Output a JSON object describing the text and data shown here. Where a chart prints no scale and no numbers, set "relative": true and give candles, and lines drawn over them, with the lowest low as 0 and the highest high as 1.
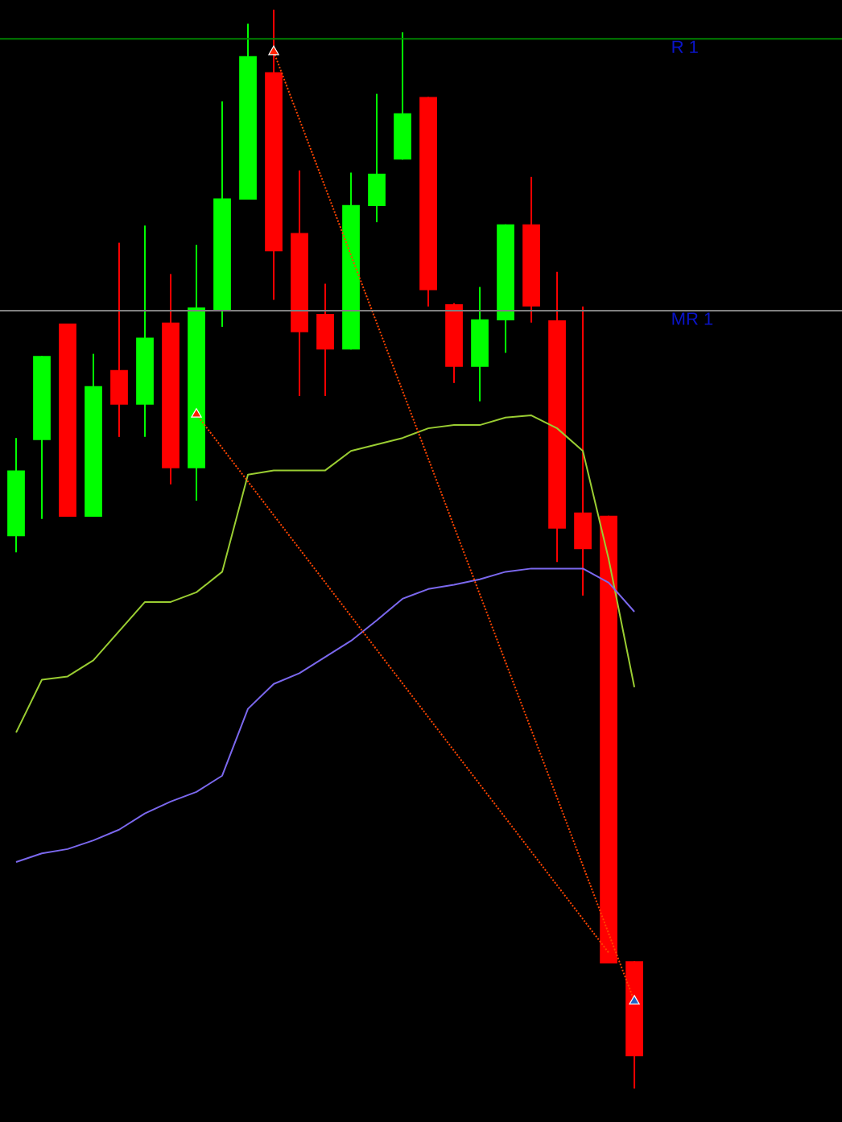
{
  "chart_data": {
    "type": "candlestick",
    "relative": true,
    "categories": [
      null,
      null,
      null,
      null,
      null,
      null,
      null,
      null,
      null,
      null,
      null,
      null,
      null,
      null,
      null,
      null,
      null,
      null,
      null,
      null,
      null,
      null,
      null,
      null,
      null
    ],
    "ohlc": [
      [
        0.512,
        0.603,
        0.497,
        0.573
      ],
      [
        0.601,
        0.679,
        0.528,
        0.679
      ],
      [
        0.709,
        0.709,
        0.53,
        0.53
      ],
      [
        0.53,
        0.681,
        0.53,
        0.651
      ],
      [
        0.666,
        0.784,
        0.604,
        0.634
      ],
      [
        0.634,
        0.8,
        0.604,
        0.696
      ],
      [
        0.71,
        0.755,
        0.56,
        0.575
      ],
      [
        0.575,
        0.782,
        0.545,
        0.724
      ],
      [
        0.721,
        0.915,
        0.706,
        0.825
      ],
      [
        0.824,
        0.987,
        0.824,
        0.957
      ],
      [
        0.942,
        1.0,
        0.731,
        0.776
      ],
      [
        0.793,
        0.851,
        0.642,
        0.701
      ],
      [
        0.718,
        0.746,
        0.642,
        0.685
      ],
      [
        0.685,
        0.849,
        0.685,
        0.819
      ],
      [
        0.818,
        0.922,
        0.803,
        0.848
      ],
      [
        0.861,
        0.979,
        0.861,
        0.904
      ],
      [
        0.919,
        0.919,
        0.725,
        0.74
      ],
      [
        0.727,
        0.728,
        0.654,
        0.669
      ],
      [
        0.669,
        0.743,
        0.637,
        0.713
      ],
      [
        0.712,
        0.801,
        0.682,
        0.801
      ],
      [
        0.801,
        0.845,
        0.71,
        0.725
      ],
      [
        0.712,
        0.757,
        0.488,
        0.519
      ],
      [
        0.534,
        0.725,
        0.457,
        0.5
      ],
      [
        0.531,
        0.531,
        0.116,
        0.116
      ],
      [
        0.118,
        0.118,
        0.0,
        0.03
      ]
    ],
    "colors": [
      "#00ff00",
      "#00ff00",
      "#ff0000",
      "#00ff00",
      "#ff0000",
      "#00ff00",
      "#ff0000",
      "#00ff00",
      "#00ff00",
      "#00ff00",
      "#ff0000",
      "#ff0000",
      "#ff0000",
      "#00ff00",
      "#00ff00",
      "#00ff00",
      "#ff0000",
      "#ff0000",
      "#00ff00",
      "#00ff00",
      "#ff0000",
      "#ff0000",
      "#ff0000",
      "#ff0000",
      "#ff0000"
    ],
    "series": [
      {
        "type": "line",
        "color": "#9acd32",
        "values": [
          0.33,
          0.379,
          0.382,
          0.397,
          0.424,
          0.451,
          0.451,
          0.46,
          0.479,
          0.569,
          0.573,
          0.573,
          0.573,
          0.591,
          0.597,
          0.603,
          0.612,
          0.615,
          0.615,
          0.622,
          0.624,
          0.612,
          0.591,
          0.491,
          0.372
        ]
      },
      {
        "type": "line",
        "color": "#7b68ee",
        "values": [
          0.21,
          0.218,
          0.222,
          0.23,
          0.24,
          0.255,
          0.266,
          0.275,
          0.29,
          0.352,
          0.375,
          0.385,
          0.4,
          0.415,
          0.434,
          0.454,
          0.463,
          0.467,
          0.472,
          0.479,
          0.482,
          0.482,
          0.482,
          0.469,
          0.442
        ]
      },
      {
        "type": "line",
        "color": "#ff4500",
        "line_style": "dotted",
        "values": [
          null,
          null,
          null,
          null,
          null,
          null,
          null,
          null,
          null,
          null,
          0.961,
          null,
          null,
          null,
          null,
          null,
          null,
          null,
          null,
          null,
          null,
          null,
          null,
          null,
          0.081
        ]
      },
      {
        "type": "line",
        "color": "#ff4500",
        "line_style": "dotted",
        "values": [
          null,
          null,
          null,
          null,
          null,
          null,
          null,
          0.625,
          null,
          null,
          null,
          null,
          null,
          null,
          null,
          null,
          null,
          null,
          null,
          null,
          null,
          null,
          null,
          0.126,
          null
        ]
      },
      {
        "type": "scatter",
        "color": "#ff2000",
        "marker": "triangle",
        "values": [
          null,
          null,
          null,
          null,
          null,
          null,
          null,
          0.625,
          null,
          null,
          0.961,
          null,
          null,
          null,
          null,
          null,
          null,
          null,
          null,
          null,
          null,
          null,
          null,
          null,
          null
        ]
      },
      {
        "type": "scatter",
        "color": "#1e64c8",
        "marker": "triangle",
        "values": [
          null,
          null,
          null,
          null,
          null,
          null,
          null,
          null,
          null,
          null,
          null,
          null,
          null,
          null,
          null,
          null,
          null,
          null,
          null,
          null,
          null,
          null,
          null,
          null,
          0.081
        ]
      }
    ],
    "ref_lines": [
      {
        "axis": "y",
        "value": 0.973,
        "label": "R 1",
        "color": "#008000"
      },
      {
        "axis": "y",
        "value": 0.721,
        "label": "MR 1",
        "color": "#808080"
      }
    ]
  }
}
